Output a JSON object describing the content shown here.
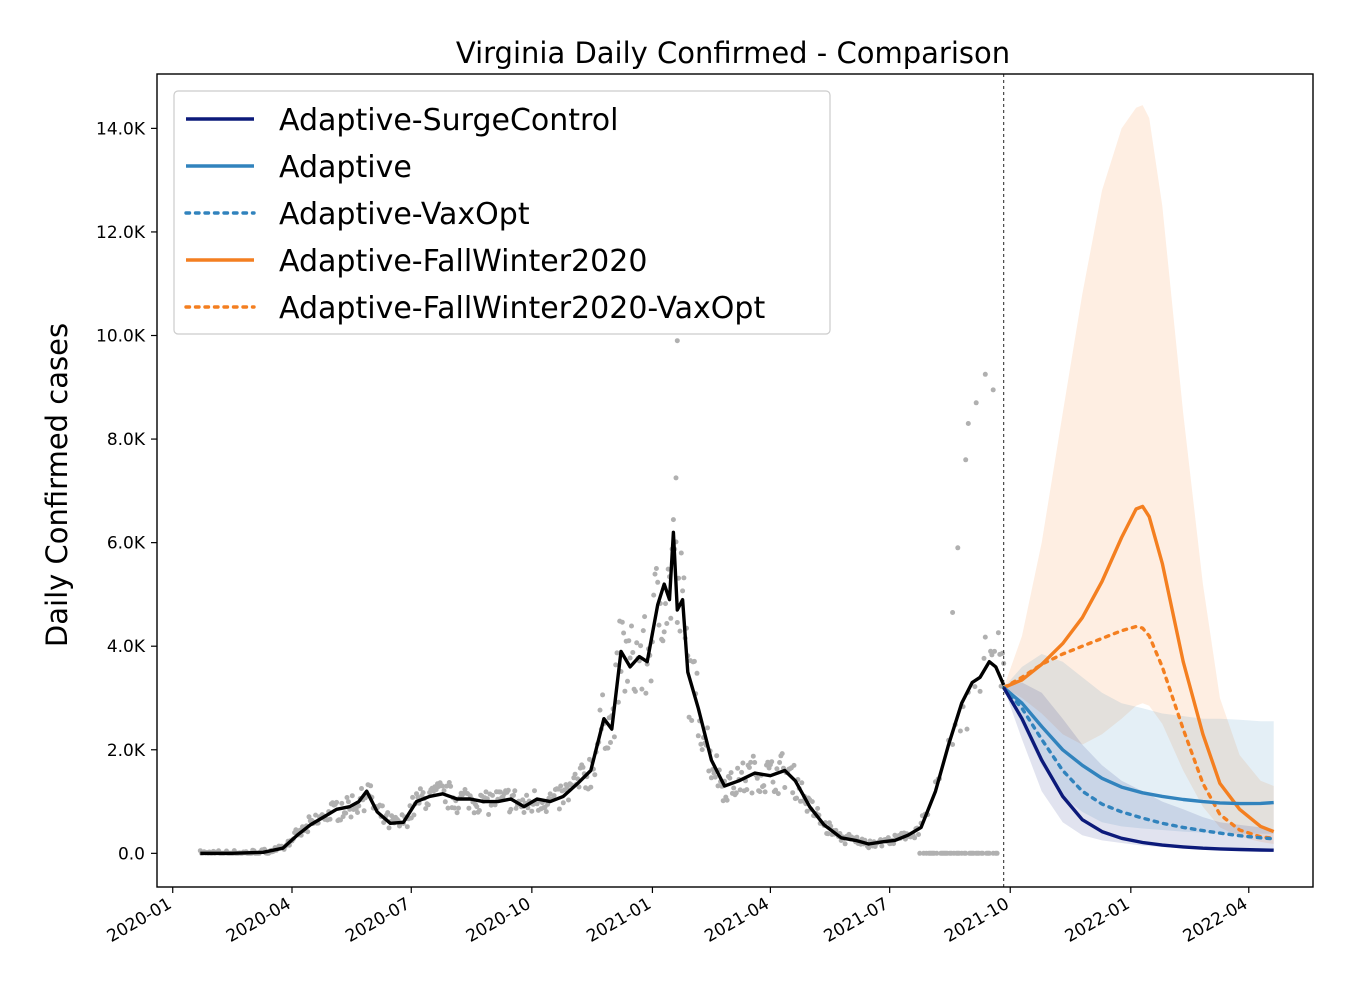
{
  "chart_data": {
    "type": "line",
    "title": "Virginia Daily Confirmed - Comparison",
    "xlabel": "",
    "ylabel": "Daily Confirmed cases",
    "xlim": [
      "2019-12-20",
      "2022-05-20"
    ],
    "ylim": [
      -650,
      15050
    ],
    "x_ticks": [
      "2020-01",
      "2020-04",
      "2020-07",
      "2020-10",
      "2021-01",
      "2021-04",
      "2021-07",
      "2021-10",
      "2022-01",
      "2022-04"
    ],
    "y_ticks": [
      0,
      2000,
      4000,
      6000,
      8000,
      10000,
      12000,
      14000
    ],
    "y_tick_labels": [
      "0.0",
      "2.0K",
      "4.0K",
      "6.0K",
      "8.0K",
      "10.0K",
      "12.0K",
      "14.0K"
    ],
    "grid": false,
    "legend_position": "upper-left",
    "forecast_start": "2021-09-26",
    "colors": {
      "observed_line": "#000000",
      "observed_points": "#b0b0b0",
      "surge_control": "#0c1a7a",
      "adaptive": "#3183bd",
      "fallwinter": "#f47f20"
    },
    "observed_7day_avg": {
      "name": "",
      "x": [
        "2020-01-22",
        "2020-02-15",
        "2020-03-10",
        "2020-03-25",
        "2020-04-05",
        "2020-04-15",
        "2020-04-25",
        "2020-05-05",
        "2020-05-15",
        "2020-05-22",
        "2020-05-28",
        "2020-06-05",
        "2020-06-15",
        "2020-06-25",
        "2020-07-05",
        "2020-07-15",
        "2020-07-25",
        "2020-08-05",
        "2020-08-15",
        "2020-08-25",
        "2020-09-05",
        "2020-09-15",
        "2020-09-25",
        "2020-10-05",
        "2020-10-15",
        "2020-10-25",
        "2020-11-05",
        "2020-11-15",
        "2020-11-25",
        "2020-12-01",
        "2020-12-08",
        "2020-12-15",
        "2020-12-22",
        "2020-12-28",
        "2021-01-05",
        "2021-01-10",
        "2021-01-14",
        "2021-01-17",
        "2021-01-20",
        "2021-01-24",
        "2021-01-28",
        "2021-02-05",
        "2021-02-15",
        "2021-02-25",
        "2021-03-08",
        "2021-03-20",
        "2021-04-01",
        "2021-04-12",
        "2021-04-20",
        "2021-05-01",
        "2021-05-12",
        "2021-05-25",
        "2021-06-05",
        "2021-06-15",
        "2021-06-25",
        "2021-07-05",
        "2021-07-15",
        "2021-07-25",
        "2021-08-05",
        "2021-08-15",
        "2021-08-25",
        "2021-09-02",
        "2021-09-08",
        "2021-09-15",
        "2021-09-20",
        "2021-09-26"
      ],
      "y": [
        0,
        0,
        20,
        100,
        350,
        550,
        700,
        850,
        900,
        1000,
        1200,
        800,
        580,
        600,
        1000,
        1100,
        1150,
        1050,
        1050,
        1000,
        1000,
        1050,
        900,
        1050,
        1000,
        1100,
        1350,
        1600,
        2600,
        2400,
        3900,
        3600,
        3800,
        3700,
        4800,
        5200,
        4900,
        6200,
        4700,
        4900,
        3500,
        2800,
        1800,
        1300,
        1400,
        1550,
        1500,
        1600,
        1400,
        900,
        550,
        300,
        250,
        180,
        220,
        250,
        350,
        500,
        1200,
        2100,
        2900,
        3300,
        3400,
        3700,
        3600,
        3250
      ]
    },
    "observed_daily_points": {
      "name": "",
      "note_outliers": [
        [
          "2021-01-20",
          9900
        ],
        [
          "2021-01-19",
          7250
        ],
        [
          "2021-09-12",
          9250
        ],
        [
          "2021-09-18",
          8950
        ],
        [
          "2021-09-05",
          8700
        ],
        [
          "2021-08-30",
          8300
        ],
        [
          "2021-08-28",
          7600
        ],
        [
          "2021-08-22",
          5900
        ],
        [
          "2021-08-18",
          4650
        ]
      ]
    },
    "series": [
      {
        "name": "Adaptive-SurgeControl",
        "style": "solid",
        "color": "#0c1a7a",
        "x": [
          "2021-09-26",
          "2021-10-10",
          "2021-10-25",
          "2021-11-10",
          "2021-11-25",
          "2021-12-10",
          "2021-12-25",
          "2022-01-10",
          "2022-01-25",
          "2022-02-10",
          "2022-02-25",
          "2022-03-10",
          "2022-03-25",
          "2022-04-10",
          "2022-04-20"
        ],
        "y": [
          3200,
          2600,
          1800,
          1100,
          650,
          420,
          290,
          210,
          160,
          125,
          100,
          85,
          75,
          65,
          60
        ],
        "band_lower": [
          3200,
          2200,
          1200,
          600,
          350,
          250,
          200,
          150,
          120,
          100,
          80,
          70,
          60,
          55,
          50
        ],
        "band_upper": [
          3200,
          3300,
          3100,
          2600,
          2100,
          1700,
          1400,
          1200,
          1000,
          850,
          700,
          600,
          550,
          500,
          450
        ]
      },
      {
        "name": "Adaptive",
        "style": "solid",
        "color": "#3183bd",
        "x": [
          "2021-09-26",
          "2021-10-10",
          "2021-10-25",
          "2021-11-10",
          "2021-11-25",
          "2021-12-10",
          "2021-12-25",
          "2022-01-10",
          "2022-01-25",
          "2022-02-10",
          "2022-02-25",
          "2022-03-10",
          "2022-03-25",
          "2022-04-10",
          "2022-04-20"
        ],
        "y": [
          3200,
          2900,
          2450,
          2000,
          1700,
          1450,
          1280,
          1170,
          1100,
          1040,
          1000,
          975,
          960,
          965,
          980
        ],
        "band_lower": [
          3200,
          2500,
          1700,
          1100,
          800,
          600,
          520,
          480,
          450,
          420,
          400,
          390,
          380,
          380,
          380
        ],
        "band_upper": [
          3200,
          3600,
          3850,
          3700,
          3400,
          3100,
          2900,
          2800,
          2700,
          2650,
          2600,
          2600,
          2580,
          2550,
          2550
        ]
      },
      {
        "name": "Adaptive-VaxOpt",
        "style": "dotted",
        "color": "#3183bd",
        "x": [
          "2021-09-26",
          "2021-10-10",
          "2021-10-25",
          "2021-11-10",
          "2021-11-25",
          "2021-12-10",
          "2021-12-25",
          "2022-01-10",
          "2022-01-25",
          "2022-02-10",
          "2022-02-25",
          "2022-03-10",
          "2022-03-25",
          "2022-04-10",
          "2022-04-20"
        ],
        "y": [
          3200,
          2800,
          2200,
          1600,
          1200,
          950,
          800,
          680,
          580,
          500,
          440,
          390,
          340,
          300,
          280
        ]
      },
      {
        "name": "Adaptive-FallWinter2020",
        "style": "solid",
        "color": "#f47f20",
        "x": [
          "2021-09-26",
          "2021-10-10",
          "2021-10-25",
          "2021-11-10",
          "2021-11-25",
          "2021-12-10",
          "2021-12-25",
          "2022-01-05",
          "2022-01-10",
          "2022-01-15",
          "2022-01-25",
          "2022-02-10",
          "2022-02-25",
          "2022-03-10",
          "2022-03-25",
          "2022-04-10",
          "2022-04-20"
        ],
        "y": [
          3200,
          3350,
          3650,
          4050,
          4550,
          5250,
          6100,
          6650,
          6700,
          6500,
          5600,
          3700,
          2300,
          1350,
          850,
          520,
          420
        ],
        "band_lower": [
          3200,
          3000,
          2700,
          2300,
          2100,
          2300,
          2600,
          2850,
          2900,
          2850,
          2500,
          1600,
          900,
          500,
          320,
          220,
          180
        ],
        "band_upper": [
          3200,
          4200,
          6000,
          8500,
          10800,
          12800,
          14000,
          14400,
          14450,
          14200,
          12500,
          8500,
          5200,
          3000,
          1900,
          1400,
          1300
        ]
      },
      {
        "name": "Adaptive-FallWinter2020-VaxOpt",
        "style": "dotted",
        "color": "#f47f20",
        "x": [
          "2021-09-26",
          "2021-10-10",
          "2021-10-25",
          "2021-11-10",
          "2021-11-25",
          "2021-12-10",
          "2021-12-25",
          "2022-01-05",
          "2022-01-10",
          "2022-01-15",
          "2022-01-25",
          "2022-02-10",
          "2022-02-25",
          "2022-03-10",
          "2022-03-25",
          "2022-04-10",
          "2022-04-20"
        ],
        "y": [
          3200,
          3400,
          3650,
          3850,
          4000,
          4150,
          4300,
          4380,
          4350,
          4200,
          3600,
          2400,
          1350,
          750,
          450,
          320,
          290
        ]
      }
    ]
  }
}
